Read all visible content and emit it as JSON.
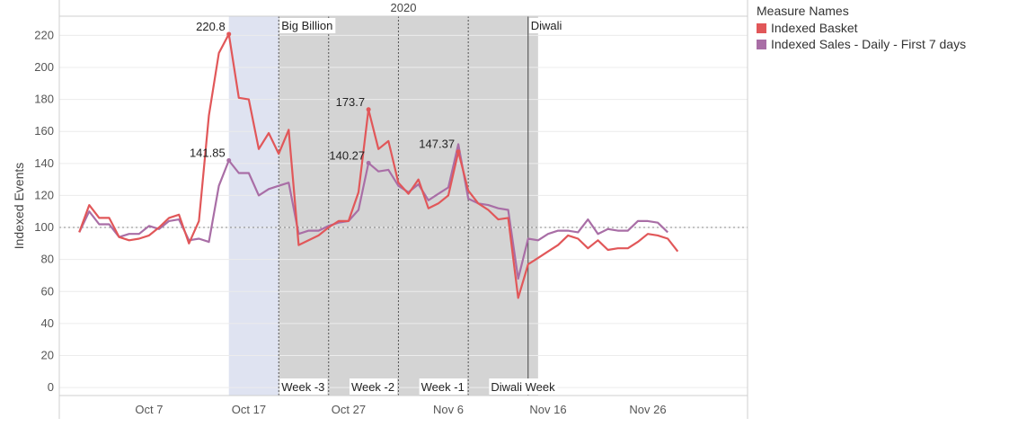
{
  "chart_data": {
    "type": "line",
    "header": "2020",
    "ylabel": "Indexed Events",
    "ylim": [
      -5,
      232
    ],
    "yticks": [
      0,
      20,
      40,
      60,
      80,
      100,
      120,
      140,
      160,
      180,
      200,
      220
    ],
    "reference_line": 100,
    "xlim": [
      "2020-09-28",
      "2020-12-06"
    ],
    "xticks": [
      {
        "date": "2020-10-07",
        "label": "Oct 7"
      },
      {
        "date": "2020-10-17",
        "label": "Oct 17"
      },
      {
        "date": "2020-10-27",
        "label": "Oct 27"
      },
      {
        "date": "2020-11-06",
        "label": "Nov 6"
      },
      {
        "date": "2020-11-16",
        "label": "Nov 16"
      },
      {
        "date": "2020-11-26",
        "label": "Nov 26"
      }
    ],
    "bands": [
      {
        "from": "2020-10-15",
        "to": "2020-10-20",
        "color": "#dfe3f1"
      },
      {
        "from": "2020-10-20",
        "to": "2020-11-15",
        "color": "#d4d4d4"
      }
    ],
    "markers": [
      {
        "date": "2020-10-20",
        "style": "dotted"
      },
      {
        "date": "2020-10-25",
        "style": "dotted"
      },
      {
        "date": "2020-11-01",
        "style": "dotted"
      },
      {
        "date": "2020-11-08",
        "style": "dotted"
      },
      {
        "date": "2020-11-14",
        "style": "solid"
      }
    ],
    "event_labels": [
      {
        "date": "2020-10-20",
        "label": "Big Billion"
      },
      {
        "date": "2020-11-14",
        "label": "Diwali"
      }
    ],
    "week_labels": [
      {
        "date": "2020-10-20",
        "label": "Week -3"
      },
      {
        "date": "2020-10-27",
        "label": "Week -2"
      },
      {
        "date": "2020-11-03",
        "label": "Week -1"
      },
      {
        "date": "2020-11-10",
        "label": "Diwali Week"
      }
    ],
    "x": [
      "2020-09-30",
      "2020-10-01",
      "2020-10-02",
      "2020-10-03",
      "2020-10-04",
      "2020-10-05",
      "2020-10-06",
      "2020-10-07",
      "2020-10-08",
      "2020-10-09",
      "2020-10-10",
      "2020-10-11",
      "2020-10-12",
      "2020-10-13",
      "2020-10-14",
      "2020-10-15",
      "2020-10-16",
      "2020-10-17",
      "2020-10-18",
      "2020-10-19",
      "2020-10-20",
      "2020-10-21",
      "2020-10-22",
      "2020-10-23",
      "2020-10-24",
      "2020-10-25",
      "2020-10-26",
      "2020-10-27",
      "2020-10-28",
      "2020-10-29",
      "2020-10-30",
      "2020-10-31",
      "2020-11-01",
      "2020-11-02",
      "2020-11-03",
      "2020-11-04",
      "2020-11-05",
      "2020-11-06",
      "2020-11-07",
      "2020-11-08",
      "2020-11-09",
      "2020-11-10",
      "2020-11-11",
      "2020-11-12",
      "2020-11-13",
      "2020-11-14",
      "2020-11-15",
      "2020-11-16",
      "2020-11-17",
      "2020-11-18",
      "2020-11-19",
      "2020-11-20",
      "2020-11-21",
      "2020-11-22",
      "2020-11-23",
      "2020-11-24",
      "2020-11-25",
      "2020-11-26",
      "2020-11-27",
      "2020-11-28",
      "2020-11-29"
    ],
    "series": [
      {
        "name": "Indexed Basket",
        "color": "#e15759",
        "values": [
          97,
          114,
          106,
          106,
          94,
          92,
          93,
          95,
          100,
          106,
          108,
          90,
          104,
          170,
          209,
          220.8,
          181,
          180,
          149,
          159,
          146,
          161,
          89,
          92,
          95,
          100,
          104,
          104,
          122,
          173.7,
          149,
          154,
          128,
          121,
          130,
          112,
          115,
          120,
          147.37,
          123,
          115,
          111,
          105,
          106,
          56,
          77,
          81,
          85,
          89,
          95,
          93,
          87,
          92,
          86,
          87,
          87,
          91,
          96,
          95,
          93,
          85
        ]
      },
      {
        "name": "Indexed Sales - Daily - First 7 days",
        "color": "#a96ea6",
        "values": [
          97,
          110,
          102,
          102,
          94,
          96,
          96,
          101,
          99,
          104,
          105,
          92,
          93,
          91,
          126,
          141.85,
          134,
          134,
          120,
          124,
          126,
          128,
          96,
          98,
          98,
          101,
          103,
          104,
          111,
          140.27,
          135,
          136,
          126,
          122,
          127,
          117,
          121,
          125,
          152,
          118,
          115,
          114,
          112,
          111,
          68,
          93,
          92,
          96,
          98,
          98,
          97,
          105,
          96,
          99,
          98,
          98,
          104,
          104,
          103,
          97,
          null
        ]
      }
    ],
    "data_labels": [
      {
        "series": 0,
        "index": 15,
        "label": "220.8"
      },
      {
        "series": 1,
        "index": 15,
        "label": "141.85"
      },
      {
        "series": 0,
        "index": 29,
        "label": "173.7"
      },
      {
        "series": 1,
        "index": 29,
        "label": "140.27"
      },
      {
        "series": 0,
        "index": 38,
        "label": "147.37"
      }
    ],
    "legend": {
      "title": "Measure Names",
      "items": [
        "Indexed Basket",
        "Indexed Sales - Daily - First 7 days"
      ]
    },
    "grid": true,
    "legend_position": "top-right"
  }
}
